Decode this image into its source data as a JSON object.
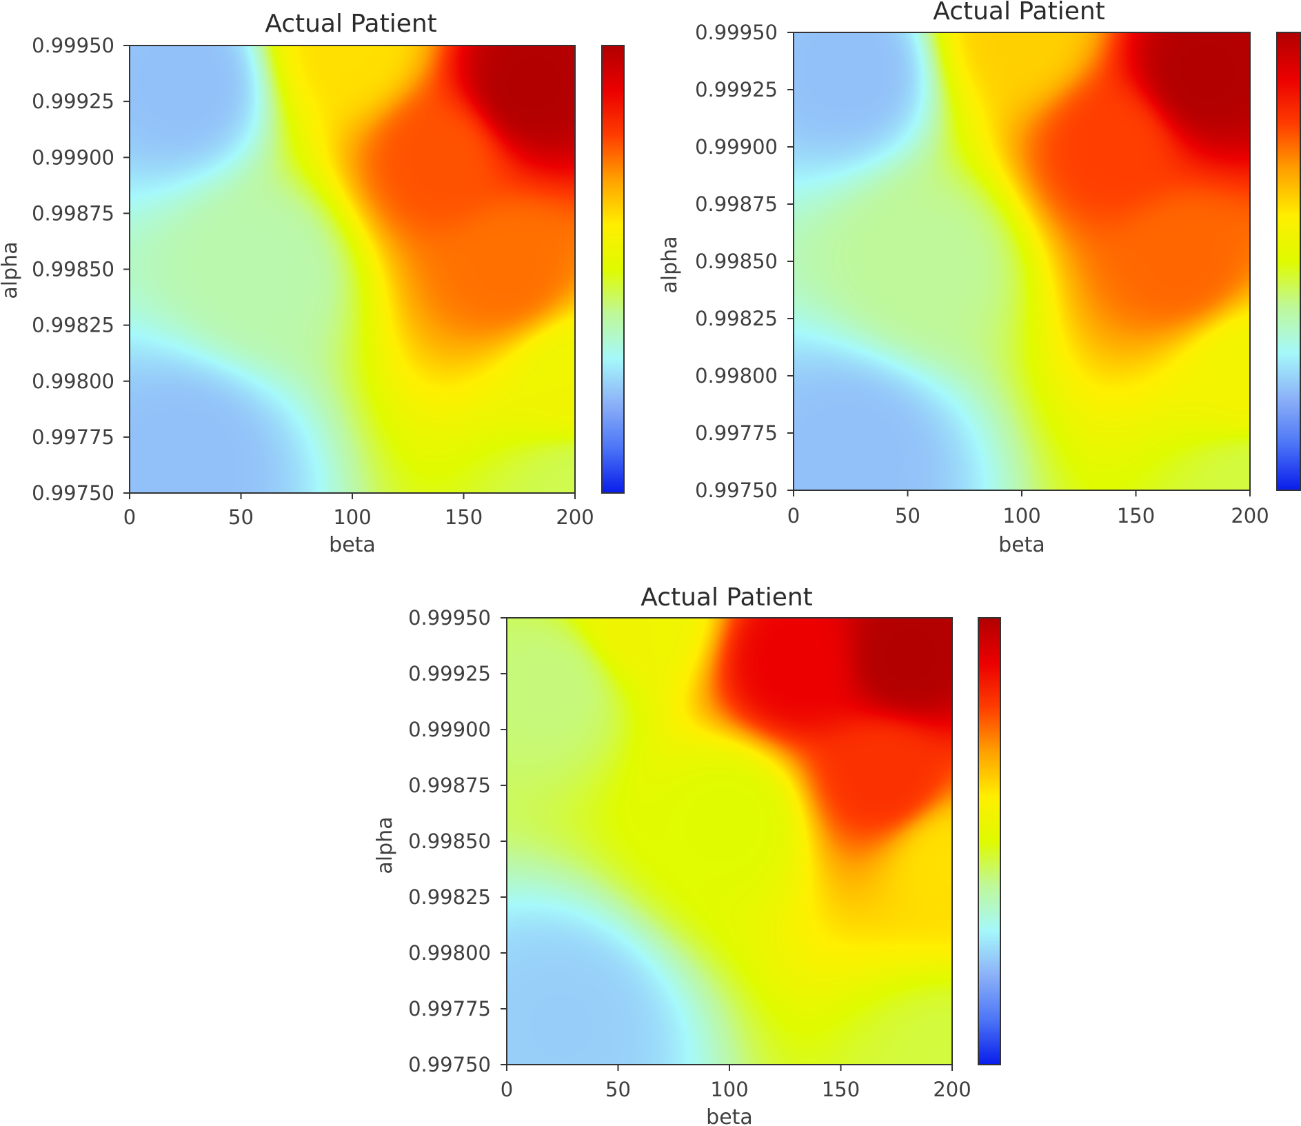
{
  "colors": {
    "frame": "#333333",
    "colormap": [
      "#0a1eeb",
      "#4d76f7",
      "#8db2f8",
      "#a6f9fb",
      "#bff89a",
      "#e0fb00",
      "#ffef00",
      "#ffa200",
      "#ff3e00",
      "#ec0000",
      "#b20000"
    ]
  },
  "chart_data": [
    {
      "type": "heatmap",
      "title": "Actual Patient",
      "xlabel": "beta",
      "ylabel": "alpha",
      "xlim": [
        0,
        200
      ],
      "ylim": [
        0.9975,
        0.9995
      ],
      "x_ticks": [
        "0",
        "50",
        "100",
        "150",
        "200"
      ],
      "y_ticks": [
        "0.99750",
        "0.99775",
        "0.99800",
        "0.99825",
        "0.99850",
        "0.99875",
        "0.99900",
        "0.99925",
        "0.99950"
      ],
      "colorbar": true,
      "field_keypoints": [
        {
          "beta": 25,
          "alpha": 0.99934,
          "value": 0.22
        },
        {
          "beta": 25,
          "alpha": 0.99766,
          "value": 0.22
        },
        {
          "beta": 180,
          "alpha": 0.99932,
          "value": 1.0
        },
        {
          "beta": 140,
          "alpha": 0.999,
          "value": 0.78
        },
        {
          "beta": 170,
          "alpha": 0.9985,
          "value": 0.75
        },
        {
          "beta": 200,
          "alpha": 0.998,
          "value": 0.55
        },
        {
          "beta": 200,
          "alpha": 0.9975,
          "value": 0.45
        },
        {
          "beta": 60,
          "alpha": 0.9985,
          "value": 0.38
        },
        {
          "beta": 100,
          "alpha": 0.9995,
          "value": 0.62
        }
      ]
    },
    {
      "type": "heatmap",
      "title": "Actual Patient",
      "xlabel": "beta",
      "ylabel": "alpha",
      "xlim": [
        0,
        200
      ],
      "ylim": [
        0.9975,
        0.9995
      ],
      "x_ticks": [
        "0",
        "50",
        "100",
        "150",
        "200"
      ],
      "y_ticks": [
        "0.99750",
        "0.99775",
        "0.99800",
        "0.99825",
        "0.99850",
        "0.99875",
        "0.99900",
        "0.99925",
        "0.99950"
      ],
      "colorbar": true,
      "field_keypoints": [
        {
          "beta": 25,
          "alpha": 0.99934,
          "value": 0.22
        },
        {
          "beta": 25,
          "alpha": 0.99766,
          "value": 0.22
        },
        {
          "beta": 180,
          "alpha": 0.99932,
          "value": 1.0
        },
        {
          "beta": 140,
          "alpha": 0.999,
          "value": 0.8
        },
        {
          "beta": 170,
          "alpha": 0.9985,
          "value": 0.76
        },
        {
          "beta": 200,
          "alpha": 0.998,
          "value": 0.56
        },
        {
          "beta": 200,
          "alpha": 0.9975,
          "value": 0.46
        },
        {
          "beta": 60,
          "alpha": 0.9985,
          "value": 0.4
        },
        {
          "beta": 100,
          "alpha": 0.9995,
          "value": 0.64
        }
      ]
    },
    {
      "type": "heatmap",
      "title": "Actual Patient",
      "xlabel": "beta",
      "ylabel": "alpha",
      "xlim": [
        0,
        200
      ],
      "ylim": [
        0.9975,
        0.9995
      ],
      "x_ticks": [
        "0",
        "50",
        "100",
        "150",
        "200"
      ],
      "y_ticks": [
        "0.99750",
        "0.99775",
        "0.99800",
        "0.99825",
        "0.99850",
        "0.99875",
        "0.99900",
        "0.99925",
        "0.99950"
      ],
      "colorbar": true,
      "field_keypoints": [
        {
          "beta": 25,
          "alpha": 0.99768,
          "value": 0.24
        },
        {
          "beta": 180,
          "alpha": 0.99932,
          "value": 1.0
        },
        {
          "beta": 130,
          "alpha": 0.9993,
          "value": 0.9
        },
        {
          "beta": 170,
          "alpha": 0.9988,
          "value": 0.82
        },
        {
          "beta": 200,
          "alpha": 0.9984,
          "value": 0.62
        },
        {
          "beta": 200,
          "alpha": 0.9975,
          "value": 0.46
        },
        {
          "beta": 20,
          "alpha": 0.9992,
          "value": 0.42
        },
        {
          "beta": 60,
          "alpha": 0.9995,
          "value": 0.55
        },
        {
          "beta": 100,
          "alpha": 0.9986,
          "value": 0.5
        }
      ]
    }
  ]
}
